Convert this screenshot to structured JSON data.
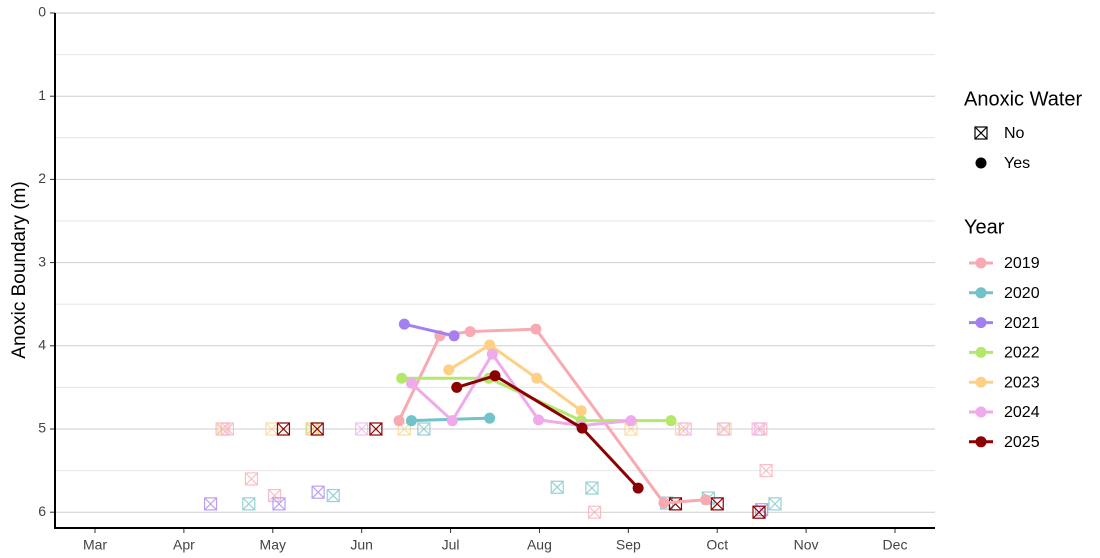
{
  "chart_data": {
    "type": "line",
    "y_label": "Anoxic Boundary (m)",
    "ylim": [
      0,
      6.19
    ],
    "y_inverted": true,
    "yticks": [
      0,
      1,
      2,
      3,
      4,
      5,
      6
    ],
    "minor_yticks": [
      0.5,
      1.5,
      2.5,
      3.5,
      4.5,
      5.5
    ],
    "grid": true,
    "xlim": [
      2.55,
      12.45
    ],
    "xticks": [
      {
        "value": 3,
        "label": "Mar"
      },
      {
        "value": 4,
        "label": "Apr"
      },
      {
        "value": 5,
        "label": "May"
      },
      {
        "value": 6,
        "label": "Jun"
      },
      {
        "value": 7,
        "label": "Jul"
      },
      {
        "value": 8,
        "label": "Aug"
      },
      {
        "value": 9,
        "label": "Sep"
      },
      {
        "value": 10,
        "label": "Oct"
      },
      {
        "value": 11,
        "label": "Nov"
      },
      {
        "value": 12,
        "label": "Dec"
      }
    ],
    "anoxic_title": "Anoxic Water",
    "anoxic_levels": [
      "No",
      "Yes"
    ],
    "legend_title": "Year",
    "legend_position": "right",
    "series": [
      {
        "name": "2019",
        "color": "#f8aab3",
        "x": [
          6.42,
          6.88,
          7.22,
          7.96,
          9.4,
          9.87
        ],
        "values": [
          4.9,
          3.88,
          3.83,
          3.8,
          5.89,
          5.85
        ],
        "no_x": [
          4.43,
          4.76,
          5.02,
          8.62,
          10.55,
          10.49
        ],
        "no_values": [
          5.0,
          5.6,
          5.8,
          6.0,
          5.5,
          5.0
        ]
      },
      {
        "name": "2020",
        "color": "#72c2c9",
        "x": [
          6.56,
          7.44
        ],
        "values": [
          4.9,
          4.87
        ],
        "no_x": [
          4.73,
          5.68,
          6.7,
          8.2,
          8.59,
          9.43,
          9.9,
          10.65
        ],
        "no_values": [
          5.9,
          5.8,
          5.0,
          5.7,
          5.71,
          5.89,
          5.83,
          5.9
        ]
      },
      {
        "name": "2021",
        "color": "#a47ff0",
        "x": [
          6.48,
          7.04
        ],
        "values": [
          3.74,
          3.88
        ],
        "no_x": [
          4.3,
          5.07,
          5.51,
          10.5
        ],
        "no_values": [
          5.9,
          5.9,
          5.76,
          5.97
        ]
      },
      {
        "name": "2022",
        "color": "#b3e86a",
        "x": [
          6.45,
          7.43,
          8.47,
          9.48
        ],
        "values": [
          4.39,
          4.39,
          4.9,
          4.9
        ],
        "no_x": [
          5.45
        ],
        "no_values": [
          5.0
        ]
      },
      {
        "name": "2023",
        "color": "#fdd085",
        "x": [
          6.98,
          7.44,
          7.97,
          8.47
        ],
        "values": [
          4.29,
          3.99,
          4.39,
          4.78
        ],
        "no_x": [
          4.45,
          4.99,
          5.44,
          6.48,
          9.03,
          9.6,
          10.09
        ],
        "no_values": [
          5.0,
          5.0,
          5.0,
          5.0,
          5.0,
          5.0,
          5.0
        ]
      },
      {
        "name": "2024",
        "color": "#eeaaea",
        "x": [
          6.56,
          7.02,
          7.47,
          7.99,
          8.47,
          9.03
        ],
        "values": [
          4.45,
          4.9,
          4.1,
          4.89,
          4.96,
          4.9
        ],
        "no_x": [
          4.49,
          6.0,
          9.64,
          10.07,
          10.46
        ],
        "no_values": [
          5.0,
          5.0,
          5.0,
          5.0,
          5.0
        ]
      },
      {
        "name": "2025",
        "color": "#8b0000",
        "x": [
          7.07,
          7.5,
          8.48,
          9.11
        ],
        "values": [
          4.5,
          4.36,
          4.99,
          5.71
        ],
        "no_x": [
          5.12,
          5.5,
          6.16,
          9.53,
          10.0,
          10.47
        ],
        "no_values": [
          5.0,
          5.0,
          5.0,
          5.9,
          5.9,
          6.0
        ]
      }
    ]
  }
}
